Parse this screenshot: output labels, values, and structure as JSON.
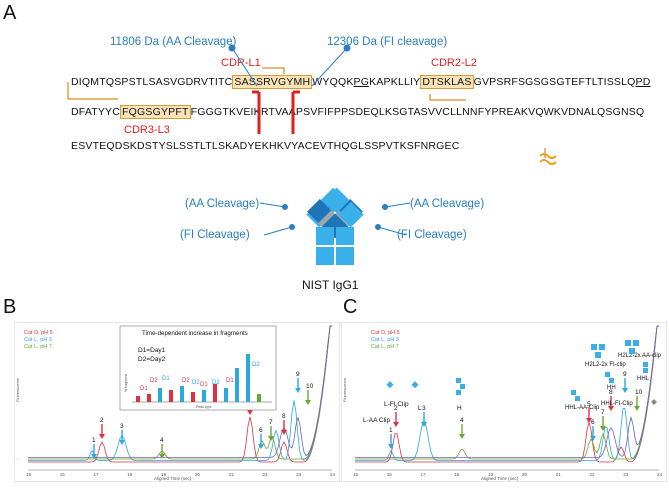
{
  "panel_a": {
    "label": "A",
    "annotations": {
      "aa_top": "11806 Da (AA Cleavage)",
      "fi_top": "12306 Da (FI cleavage)",
      "cdr_l1": "CDR-L1",
      "cdr_l2": "CDR2-L2",
      "cdr_l3": "CDR3-L3"
    },
    "seq1": [
      "DIQMTQSPSTLSASVGDRVTITC",
      "SASSRVGYMH",
      "WYQQK",
      "PG",
      "KAPKLLIY",
      "DTSKLAS",
      "GVPSRFSGSGSGTEFTLTISSLQ",
      "PD"
    ],
    "seq2": [
      "DFATYYC",
      "FQGSGYPFT",
      "FGGGTKVEIKRTVAAPSVFIFPPSDEQLKSGTASVVCLLNNFYPREAKVQWKVDNALQSGNSQ"
    ],
    "seq3": "ESVTEQDSKDSTYSLSSTLTLSKADYEKHKVYACEVTHQGLSSPVTKSFNRGEC",
    "antibody_labels": {
      "aa_left": "(AA Cleavage)",
      "aa_right": "(AA Cleavage)",
      "fi_left": "(FI Cleavage)",
      "fi_right": "(FI Cleavage)",
      "name": "NIST IgG1"
    }
  },
  "panel_b": {
    "label": "B",
    "legend": [
      "Cat D, pH 5",
      "Cat L, pH 3",
      "Cat L, pH 7"
    ],
    "ylabel": "Fluorescence",
    "xlabel": "Aligned Time (sec)",
    "xticks": [
      "15",
      "16",
      "17",
      "18",
      "19",
      "20",
      "21",
      "22",
      "23",
      "24"
    ],
    "peaks": [
      "1",
      "2",
      "3",
      "4",
      "5",
      "6",
      "7",
      "8",
      "9",
      "10"
    ],
    "inset": {
      "title": "Time-dependent increase in fragments",
      "d1": "D1=Day1",
      "d2": "D2=Day2",
      "ylabel": "% fragment",
      "xlabel": "Peak type",
      "labels": [
        "D1",
        "D2",
        "D1",
        "D2",
        "D2",
        "D1",
        "D2",
        "D1",
        "D2"
      ]
    }
  },
  "panel_c": {
    "label": "C",
    "legend": [
      "Cat D, pH 5",
      "Cat L, pH 3",
      "Cat L, pH 7"
    ],
    "ylabel": "Fluorescence",
    "xlabel": "Aligned Time (sec)",
    "xticks": [
      "15",
      "16",
      "17",
      "18",
      "19",
      "20",
      "21",
      "22",
      "23",
      "24"
    ],
    "annotations": {
      "l_aa": "L-AA Clip",
      "l_fi": "L-FI Clip",
      "l": "L",
      "h": "H",
      "hh": "HH",
      "hhl_aa": "HHL-AA-Clip",
      "hhl_fi": "HHL-FI-Clip",
      "h2l2_fi": "H2L2-2x FI-clip",
      "h2l2_aa": "H2L2-2x AA-clip",
      "hhl": "HHL"
    },
    "peaks": [
      "1",
      "2",
      "3",
      "4",
      "5",
      "6",
      "7",
      "8",
      "9",
      "10"
    ]
  },
  "colors": {
    "cat_d": "#e03040",
    "cat_l3": "#2aa8e0",
    "cat_l7": "#6aa832",
    "trace_purple": "#7060c0",
    "highlight": "#fbe3b8",
    "antibody_dark": "#1f74b8",
    "antibody_light": "#3ab0ea"
  }
}
